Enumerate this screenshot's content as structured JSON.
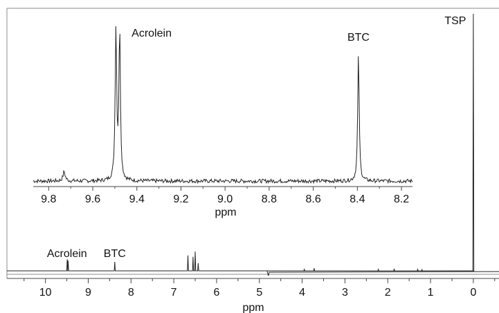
{
  "chart_data": [
    {
      "type": "line",
      "panel": "main",
      "xlabel": "ppm",
      "x_reversed": true,
      "xlim": [
        10.9,
        -0.6
      ],
      "xticks": [
        "10",
        "9",
        "8",
        "7",
        "6",
        "5",
        "4",
        "3",
        "2",
        "1",
        "0"
      ],
      "baseline": "0",
      "peaks": [
        {
          "ppm": 9.49,
          "height": 0.045
        },
        {
          "ppm": 9.47,
          "height": 0.04
        },
        {
          "ppm": 8.38,
          "height": 0.035
        },
        {
          "ppm": 6.67,
          "height": 0.06
        },
        {
          "ppm": 6.55,
          "height": 0.055
        },
        {
          "ppm": 6.5,
          "height": 0.075
        },
        {
          "ppm": 6.43,
          "height": 0.03
        },
        {
          "ppm": 3.72,
          "height": 0.01
        },
        {
          "ppm": 3.95,
          "height": 0.006
        },
        {
          "ppm": 2.22,
          "height": 0.006
        },
        {
          "ppm": 1.85,
          "height": 0.008
        },
        {
          "ppm": 1.3,
          "height": 0.006
        },
        {
          "ppm": 1.2,
          "height": 0.005
        },
        {
          "ppm": 0.0,
          "height": 1.0
        }
      ],
      "water_dip_ppm": 4.79,
      "annotations": [
        {
          "text": "Acrolein",
          "ppm": 9.48
        },
        {
          "text": "BTC",
          "ppm": 8.38
        },
        {
          "text": "TSP",
          "ppm": 0.0
        }
      ]
    },
    {
      "type": "line",
      "panel": "inset",
      "xlabel": "ppm",
      "x_reversed": true,
      "xlim": [
        9.87,
        8.15
      ],
      "xticks": [
        "9.8",
        "9.6",
        "9.4",
        "9.2",
        "9.0",
        "8.8",
        "8.6",
        "8.4",
        "8.2"
      ],
      "peaks": [
        {
          "ppm": 9.495,
          "height": 1.0
        },
        {
          "ppm": 9.478,
          "height": 0.97
        },
        {
          "ppm": 8.395,
          "height": 0.82
        },
        {
          "ppm": 9.73,
          "height": 0.06
        }
      ],
      "annotations": [
        {
          "text": "Acrolein",
          "ppm": 9.49
        },
        {
          "text": "BTC",
          "ppm": 8.395
        }
      ]
    }
  ]
}
